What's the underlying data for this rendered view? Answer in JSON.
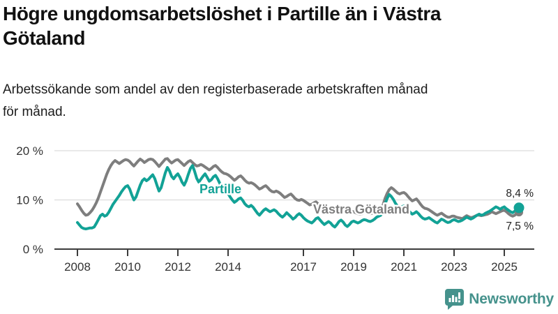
{
  "header": {
    "title_lines": [
      "Högre ungdomsarbetslöshet i Partille än i Västra",
      "Götaland"
    ],
    "subtitle_lines": [
      "Arbetssökande som andel av den registerbaserade arbetskraften månad",
      "för månad."
    ]
  },
  "footer": {
    "brand": "Newsworthy",
    "brand_color": "#45928C",
    "logo_icon": "speech-bubble-bar-chart-icon"
  },
  "chart_data": {
    "type": "line",
    "title": "Högre ungdomsarbetslöshet i Partille än i Västra Götaland",
    "subtitle": "Arbetssökande som andel av den registerbaserade arbetskraften månad för månad.",
    "unit": "%",
    "frequency": "monthly",
    "start": {
      "year": 2008,
      "month": 1
    },
    "end": {
      "year": 2025,
      "month": 8
    },
    "grid": "horizontal-only",
    "legend_position": "inline-labels",
    "x_axis": {
      "tick_years": [
        2008,
        2010,
        2012,
        2014,
        2017,
        2019,
        2021,
        2023,
        2025
      ],
      "range": [
        2008,
        2025.67
      ]
    },
    "y_axis": {
      "range": [
        0,
        21
      ],
      "ticks": [
        {
          "value": 20,
          "label": "20 %"
        },
        {
          "value": 10,
          "label": "10 %"
        },
        {
          "value": 0,
          "label": "0 %"
        }
      ]
    },
    "colors": {
      "axis": "#3C3C3C",
      "gridline": "#DCDCDC",
      "tick_text": "#333333"
    },
    "series": [
      {
        "name": "Västra Götaland",
        "color": "#7E7E7E",
        "end_value": 7.5,
        "end_label": "7,5 %",
        "values": [
          9.2,
          8.6,
          7.9,
          7.3,
          6.9,
          7.0,
          7.4,
          7.9,
          8.6,
          9.4,
          10.4,
          11.6,
          12.8,
          14.0,
          15.2,
          16.2,
          17.0,
          17.6,
          18.0,
          17.7,
          17.4,
          17.7,
          18.0,
          18.2,
          18.1,
          17.8,
          17.3,
          16.9,
          17.4,
          17.9,
          18.3,
          18.0,
          17.6,
          17.9,
          18.2,
          18.3,
          18.2,
          17.8,
          17.3,
          16.8,
          17.3,
          17.8,
          18.3,
          18.4,
          17.9,
          17.5,
          17.8,
          18.1,
          18.2,
          17.8,
          17.4,
          17.0,
          17.4,
          17.8,
          18.0,
          17.6,
          17.2,
          16.9,
          17.0,
          17.2,
          17.0,
          16.7,
          16.4,
          16.1,
          16.4,
          16.8,
          17.0,
          16.6,
          16.1,
          15.7,
          15.4,
          15.3,
          15.1,
          14.8,
          14.4,
          14.0,
          14.3,
          14.7,
          14.9,
          14.5,
          14.0,
          13.6,
          13.4,
          13.5,
          13.3,
          13.0,
          12.6,
          12.2,
          12.4,
          12.7,
          12.9,
          12.5,
          12.0,
          11.7,
          11.6,
          11.8,
          11.6,
          11.3,
          10.9,
          10.5,
          10.7,
          11.0,
          11.2,
          10.8,
          10.3,
          10.0,
          9.9,
          10.1,
          9.9,
          9.6,
          9.3,
          9.0,
          9.1,
          9.4,
          9.6,
          9.2,
          8.8,
          8.5,
          8.4,
          8.6,
          8.5,
          8.3,
          8.0,
          7.7,
          7.8,
          8.1,
          8.3,
          8.0,
          7.6,
          7.4,
          7.4,
          7.6,
          7.6,
          7.4,
          7.2,
          7.1,
          7.2,
          7.5,
          7.7,
          7.4,
          7.2,
          7.3,
          7.5,
          7.8,
          8.1,
          8.3,
          8.9,
          10.3,
          11.3,
          12.1,
          12.5,
          12.2,
          11.8,
          11.4,
          11.2,
          11.4,
          11.5,
          11.2,
          10.7,
          10.2,
          9.8,
          10.0,
          10.2,
          9.7,
          9.1,
          8.6,
          8.3,
          8.2,
          8.0,
          7.7,
          7.4,
          7.1,
          6.9,
          7.1,
          7.3,
          7.0,
          6.7,
          6.5,
          6.5,
          6.7,
          6.7,
          6.5,
          6.4,
          6.3,
          6.2,
          6.5,
          6.8,
          6.6,
          6.4,
          6.5,
          6.7,
          6.9,
          6.9,
          6.8,
          6.9,
          7.0,
          7.1,
          7.3,
          7.6,
          7.4,
          7.2,
          7.4,
          7.6,
          7.8,
          7.9,
          7.6,
          7.2,
          6.9,
          6.7,
          6.9,
          7.2,
          7.5
        ]
      },
      {
        "name": "Partille",
        "color": "#12A296",
        "end_value": 8.4,
        "end_label": "8,4 %",
        "values": [
          5.4,
          4.9,
          4.4,
          4.2,
          4.1,
          4.2,
          4.3,
          4.3,
          4.5,
          5.2,
          6.0,
          6.8,
          7.1,
          6.7,
          6.9,
          7.5,
          8.3,
          9.1,
          9.7,
          10.3,
          10.9,
          11.6,
          12.2,
          12.7,
          12.9,
          12.2,
          11.0,
          10.0,
          10.6,
          11.8,
          13.0,
          13.9,
          14.3,
          13.9,
          14.2,
          14.7,
          15.1,
          14.3,
          13.0,
          11.8,
          12.5,
          14.0,
          15.5,
          16.6,
          15.9,
          14.8,
          14.3,
          14.9,
          15.3,
          14.6,
          13.6,
          13.0,
          13.9,
          15.2,
          16.4,
          17.0,
          15.8,
          14.4,
          13.6,
          14.2,
          14.8,
          15.3,
          14.6,
          13.8,
          14.1,
          14.7,
          15.0,
          14.3,
          13.4,
          12.6,
          12.0,
          11.8,
          11.3,
          10.6,
          10.0,
          9.5,
          9.8,
          10.2,
          10.4,
          9.9,
          9.2,
          8.8,
          8.6,
          8.9,
          8.5,
          7.9,
          7.3,
          6.9,
          7.4,
          7.9,
          8.2,
          7.9,
          7.6,
          7.8,
          8.0,
          7.7,
          7.2,
          6.8,
          6.5,
          6.9,
          7.4,
          7.0,
          6.6,
          6.1,
          6.4,
          6.9,
          7.2,
          6.9,
          6.4,
          6.0,
          5.7,
          5.5,
          5.3,
          5.7,
          6.2,
          6.4,
          5.9,
          5.4,
          5.0,
          5.3,
          5.6,
          5.3,
          4.8,
          4.5,
          5.0,
          5.6,
          5.9,
          5.5,
          4.9,
          4.6,
          5.0,
          5.5,
          5.7,
          5.5,
          5.3,
          5.5,
          5.8,
          6.0,
          5.9,
          5.7,
          5.6,
          5.8,
          6.1,
          6.5,
          6.7,
          6.9,
          7.5,
          9.1,
          10.3,
          11.1,
          10.7,
          10.1,
          9.3,
          8.7,
          8.4,
          8.6,
          8.8,
          8.4,
          7.9,
          7.5,
          7.1,
          7.3,
          7.6,
          7.2,
          6.7,
          6.3,
          6.1,
          6.2,
          6.4,
          6.1,
          5.8,
          5.5,
          5.3,
          5.7,
          6.1,
          5.9,
          5.6,
          5.4,
          5.5,
          5.8,
          6.0,
          5.8,
          5.6,
          5.7,
          5.9,
          6.2,
          6.5,
          6.3,
          6.1,
          6.3,
          6.6,
          6.9,
          7.1,
          6.9,
          7.0,
          7.3,
          7.5,
          7.7,
          8.0,
          8.3,
          8.6,
          8.4,
          8.1,
          8.4,
          8.6,
          8.2,
          7.9,
          7.6,
          7.4,
          7.7,
          7.5,
          8.4
        ]
      }
    ]
  }
}
